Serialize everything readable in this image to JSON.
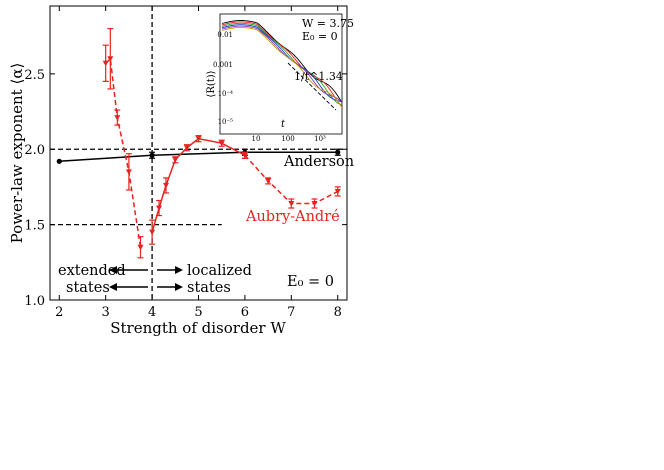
{
  "chart_data": [
    {
      "type": "line",
      "xlabel": "Strength of disorder W",
      "ylabel": "Power-law exponent ⟨α⟩",
      "xlim": [
        1.8,
        8.2
      ],
      "ylim": [
        1.0,
        2.95
      ],
      "xticks": [
        2,
        3,
        4,
        5,
        6,
        7,
        8
      ],
      "yticks": [
        1.0,
        1.5,
        2.0,
        2.5
      ],
      "xtick_labels": [
        "2",
        "3",
        "4",
        "5",
        "6",
        "7",
        "8"
      ],
      "ytick_labels": [
        "1.0",
        "1.5",
        "2.0",
        "2.5"
      ],
      "grid": false,
      "series": [
        {
          "name": "Anderson",
          "color": "#000000",
          "style": "solid",
          "marker": "circle",
          "x": [
            2,
            4,
            6,
            8
          ],
          "y": [
            1.92,
            1.96,
            1.98,
            1.98
          ],
          "err": [
            0.0,
            0.02,
            0.02,
            0.02
          ]
        },
        {
          "name": "Aubry-André",
          "color": "#e8231f",
          "style": "dashed",
          "marker": "triangle",
          "x": [
            3.0,
            3.1,
            3.25,
            3.5,
            3.75
          ],
          "y": [
            2.57,
            2.6,
            2.21,
            1.85,
            1.35
          ],
          "err": [
            0.12,
            0.2,
            0.05,
            0.12,
            0.07
          ]
        },
        {
          "name": "Aubry-André",
          "color": "#e8231f",
          "style": "solid",
          "marker": "triangle",
          "x": [
            4.0,
            4.15,
            4.3,
            4.5,
            4.75,
            5.0,
            5.5,
            6.0
          ],
          "y": [
            1.45,
            1.61,
            1.76,
            1.93,
            2.01,
            2.07,
            2.04,
            1.96
          ],
          "err": [
            0.08,
            0.05,
            0.05,
            0.02,
            0.02,
            0.02,
            0.02,
            0.02
          ]
        },
        {
          "name": "Aubry-André",
          "color": "#e8231f",
          "style": "dashed",
          "marker": "triangle",
          "x": [
            6.0,
            6.5,
            7.0,
            7.5,
            8.0
          ],
          "y": [
            1.96,
            1.79,
            1.64,
            1.64,
            1.72
          ],
          "err": [
            0.02,
            0.02,
            0.03,
            0.03,
            0.03
          ]
        }
      ],
      "reference_lines": {
        "horizontal_y": [
          2.0,
          1.5
        ],
        "vertical_x": 4.0
      },
      "annotations": {
        "anderson_label": "Anderson",
        "aubry_label": "Aubry-André",
        "extended_line1": "extended",
        "extended_line2": "states",
        "localized_line1": "localized",
        "localized_line2": "states",
        "energy_label": "E₀ = 0"
      }
    },
    {
      "type": "line",
      "xlabel": "t",
      "ylabel": "⟨R(t)⟩",
      "log_x": true,
      "log_y": true,
      "xtick_labels": [
        "10",
        "100",
        "10³"
      ],
      "ytick_labels": [
        "0.01",
        "0.001",
        "10⁻⁴",
        "10⁻⁵"
      ],
      "legend_text_line1": "W = 3.75",
      "legend_text_line2": "E₀ = 0",
      "power_law_label": "1/t^1.34",
      "series_colors": [
        "#000000",
        "#e8231f",
        "#2ca02c",
        "#1f3fbf",
        "#8b2fc9",
        "#c8a000"
      ]
    }
  ]
}
